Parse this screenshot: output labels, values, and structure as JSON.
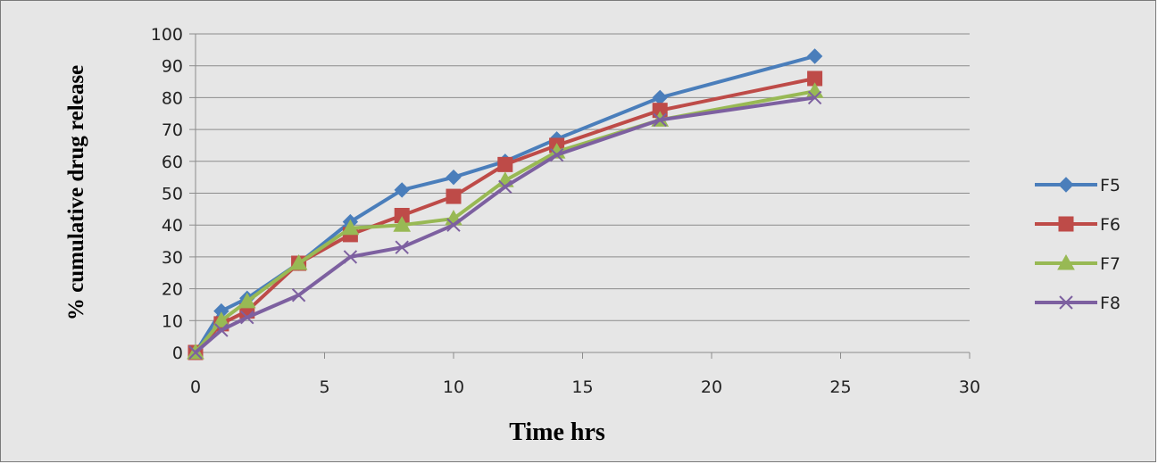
{
  "chart_data": {
    "type": "line",
    "xlabel": "Time hrs",
    "ylabel": "% cumulative drug release",
    "xlim": [
      0,
      30
    ],
    "ylim": [
      0,
      100
    ],
    "xticks": [
      "0",
      "5",
      "10",
      "15",
      "20",
      "25",
      "30"
    ],
    "yticks": [
      "0",
      "10",
      "20",
      "30",
      "40",
      "50",
      "60",
      "70",
      "80",
      "90",
      "100"
    ],
    "grid": "horizontal",
    "legend_position": "right",
    "series": [
      {
        "name": "F5",
        "color": "#4a7ebb",
        "marker": "diamond",
        "x": [
          0,
          1,
          2,
          4,
          6,
          8,
          10,
          12,
          14,
          18,
          24
        ],
        "y": [
          0,
          13,
          17,
          28,
          41,
          51,
          55,
          60,
          67,
          80,
          93
        ]
      },
      {
        "name": "F6",
        "color": "#be4b48",
        "marker": "square",
        "x": [
          0,
          1,
          2,
          4,
          6,
          8,
          10,
          12,
          14,
          18,
          24
        ],
        "y": [
          0,
          9,
          13,
          28,
          37,
          43,
          49,
          59,
          65,
          76,
          86
        ]
      },
      {
        "name": "F7",
        "color": "#98b954",
        "marker": "triangle",
        "x": [
          0,
          1,
          2,
          4,
          6,
          8,
          10,
          12,
          14,
          18,
          24
        ],
        "y": [
          0,
          10,
          16,
          28,
          39,
          40,
          42,
          54,
          63,
          73,
          82
        ]
      },
      {
        "name": "F8",
        "color": "#7d60a0",
        "marker": "x",
        "x": [
          0,
          1,
          2,
          4,
          6,
          8,
          10,
          12,
          14,
          18,
          24
        ],
        "y": [
          0,
          7,
          11,
          18,
          30,
          33,
          40,
          52,
          62,
          73,
          80
        ]
      }
    ]
  }
}
